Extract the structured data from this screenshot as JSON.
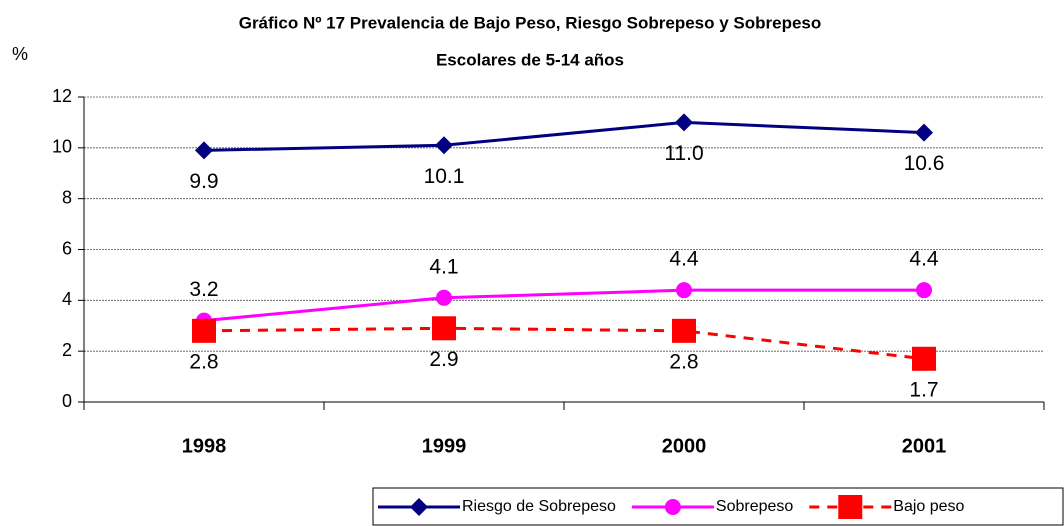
{
  "chart_data": {
    "type": "line",
    "title": "Gráfico Nº 17   Prevalencia de Bajo Peso, Riesgo Sobrepeso y Sobrepeso",
    "subtitle": "Escolares  de 5-14 años",
    "y_label": "%",
    "categories": [
      "1998",
      "1999",
      "2000",
      "2001"
    ],
    "series": [
      {
        "name": "Riesgo de Sobrepeso",
        "color": "#000080",
        "marker": "diamond",
        "dash": false,
        "values": [
          9.9,
          10.1,
          11.0,
          10.6
        ],
        "value_labels": [
          "9.9",
          "10.1",
          "11.0",
          "10.6"
        ]
      },
      {
        "name": "Sobrepeso",
        "color": "#ff00ff",
        "marker": "circle",
        "dash": false,
        "values": [
          3.2,
          4.1,
          4.4,
          4.4
        ],
        "value_labels": [
          "3.2",
          "4.1",
          "4.4",
          "4.4"
        ]
      },
      {
        "name": "Bajo peso",
        "color": "#ff0000",
        "marker": "square",
        "dash": true,
        "values": [
          2.8,
          2.9,
          2.8,
          1.7
        ],
        "value_labels": [
          "2.8",
          "2.9",
          "2.8",
          "1.7"
        ]
      }
    ],
    "ylim": [
      0,
      12
    ],
    "yticks": [
      0,
      2,
      4,
      6,
      8,
      10,
      12
    ],
    "grid": true,
    "legend": "bottom"
  }
}
